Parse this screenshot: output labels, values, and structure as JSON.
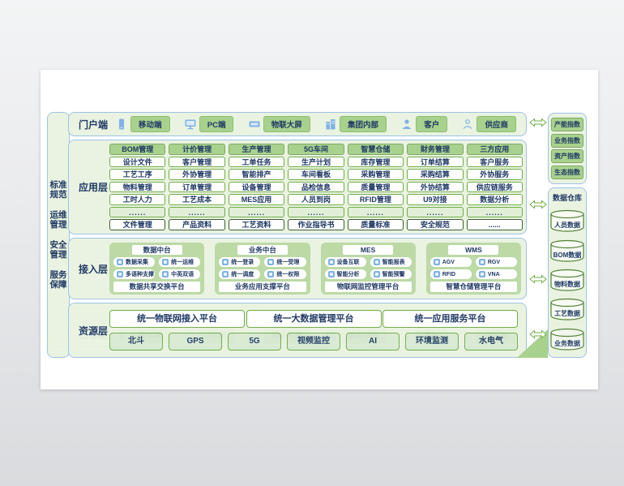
{
  "left_sidebar": {
    "items": [
      "标准规范",
      "运维管理",
      "安全管理",
      "服务保障"
    ]
  },
  "portal": {
    "label": "门户端",
    "entries": [
      {
        "icon": "mobile-icon",
        "label": "移动端"
      },
      {
        "icon": "monitor-icon",
        "label": "PC端"
      },
      {
        "icon": "screen-icon",
        "label": "物联大屏"
      },
      {
        "icon": "building-icon",
        "label": "集团内部"
      },
      {
        "icon": "customer-icon",
        "label": "客户"
      },
      {
        "icon": "supplier-icon",
        "label": "供应商"
      }
    ]
  },
  "application": {
    "label": "应用层",
    "columns": [
      {
        "header": "BOM管理",
        "items": [
          "设计文件",
          "工艺工序",
          "物料管理",
          "工时人力"
        ],
        "more": "......",
        "footer": "文件管理"
      },
      {
        "header": "计价管理",
        "items": [
          "客户管理",
          "外协管理",
          "订单管理",
          "工艺成本"
        ],
        "more": "......",
        "footer": "产品资料"
      },
      {
        "header": "生产管理",
        "items": [
          "工单任务",
          "智能排产",
          "设备管理",
          "MES应用"
        ],
        "more": "......",
        "footer": "工艺资料"
      },
      {
        "header": "5G车间",
        "items": [
          "生产计划",
          "车间看板",
          "品检信息",
          "人员到岗"
        ],
        "more": "......",
        "footer": "作业指导书"
      },
      {
        "header": "智慧仓储",
        "items": [
          "库存管理",
          "采购管理",
          "质量管理",
          "RFID管理"
        ],
        "more": "......",
        "footer": "质量标准"
      },
      {
        "header": "财务管理",
        "items": [
          "订单结算",
          "采购结算",
          "外协结算",
          "U9对接"
        ],
        "more": "......",
        "footer": "安全规范"
      },
      {
        "header": "三方应用",
        "items": [
          "客户服务",
          "外协服务",
          "供应链服务",
          "数据分析"
        ],
        "more": "......",
        "footer": "......"
      }
    ]
  },
  "access": {
    "label": "接入层",
    "blocks": [
      {
        "header": "数据中台",
        "items": [
          {
            "icon": "chart-icon",
            "label": "数据采集"
          },
          {
            "icon": "gear-icon",
            "label": "统一运维"
          },
          {
            "icon": "cube-icon",
            "label": "多语种支撑"
          },
          {
            "icon": "doc-icon",
            "label": "中英双语"
          }
        ],
        "footer": "数据共享交换平台"
      },
      {
        "header": "业务中台",
        "items": [
          {
            "icon": "user-icon",
            "label": "统一登录"
          },
          {
            "icon": "shield-icon",
            "label": "统一受理"
          },
          {
            "icon": "calendar-icon",
            "label": "统一调度"
          },
          {
            "icon": "lock-icon",
            "label": "统一权限"
          }
        ],
        "footer": "业务应用支撑平台"
      },
      {
        "header": "MES",
        "items": [
          {
            "icon": "user-icon",
            "label": "设备互联"
          },
          {
            "icon": "shield-icon",
            "label": "智能报表"
          },
          {
            "icon": "calendar-icon",
            "label": "智能分析"
          },
          {
            "icon": "lock-icon",
            "label": "智能预警"
          }
        ],
        "footer": "物联网监控管理平台"
      },
      {
        "header": "WMS",
        "items": [
          {
            "icon": "user-icon",
            "label": "AGV"
          },
          {
            "icon": "shield-icon",
            "label": "RGV"
          },
          {
            "icon": "calendar-icon",
            "label": "RFID"
          },
          {
            "icon": "lock-icon",
            "label": "VNA"
          }
        ],
        "footer": "智慧仓储管理平台"
      }
    ]
  },
  "resource": {
    "label": "资源层",
    "platforms": [
      "统一物联网接入平台",
      "统一大数据管理平台",
      "统一应用服务平台"
    ],
    "capabilities": [
      "北斗",
      "GPS",
      "5G",
      "视频监控",
      "AI",
      "环境监测",
      "水电气"
    ]
  },
  "right_panel": {
    "indexes": [
      "产能指数",
      "业务指数",
      "资产指数",
      "生态指数"
    ],
    "warehouse_title": "数据仓库",
    "databases": [
      "人员数据",
      "BOM数据",
      "物料数据",
      "工艺数据",
      "业务数据"
    ]
  },
  "colors": {
    "accent_green": "#a9d18e",
    "panel_green": "#eaf3e1",
    "block_green": "#bcd9a6",
    "border_blue": "#9dc3e6",
    "border_green": "#70ad47",
    "text_navy": "#1f3864",
    "icon_blue": "#7fb2e5"
  }
}
